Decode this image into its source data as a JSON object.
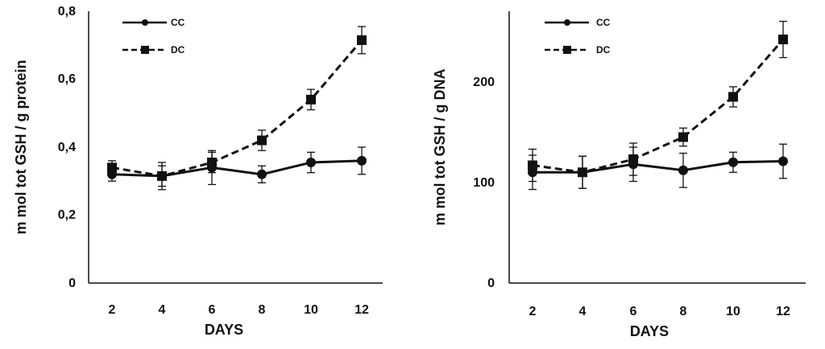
{
  "chart_data": [
    {
      "type": "line",
      "x": [
        2,
        4,
        6,
        8,
        10,
        12
      ],
      "xlabel": "DAYS",
      "ylabel": "m mol tot GSH / g protein",
      "ylim": [
        0,
        0.8
      ],
      "yticks": [
        "0",
        "0,2",
        "0,4",
        "0,6",
        "0,8"
      ],
      "grid": false,
      "legend": "top-left",
      "series": [
        {
          "name": "CC",
          "marker": "circle",
          "style": "solid",
          "y": [
            0.32,
            0.315,
            0.34,
            0.32,
            0.355,
            0.36
          ],
          "err": [
            0.02,
            0.03,
            0.05,
            0.025,
            0.03,
            0.04
          ]
        },
        {
          "name": "DC",
          "marker": "square",
          "style": "dashed",
          "y": [
            0.34,
            0.315,
            0.355,
            0.42,
            0.54,
            0.715
          ],
          "err": [
            0.02,
            0.04,
            0.03,
            0.03,
            0.03,
            0.04
          ]
        }
      ]
    },
    {
      "type": "line",
      "x": [
        2,
        4,
        6,
        8,
        10,
        12
      ],
      "xlabel": "DAYS",
      "ylabel": "m mol tot GSH / g DNA",
      "ylim": [
        0,
        270
      ],
      "yticks": [
        "0",
        "100",
        "200"
      ],
      "grid": false,
      "legend": "top-left",
      "series": [
        {
          "name": "CC",
          "marker": "circle",
          "style": "solid",
          "y": [
            110,
            110,
            118,
            112,
            120,
            121
          ],
          "err": [
            17,
            16,
            17,
            17,
            10,
            17
          ]
        },
        {
          "name": "DC",
          "marker": "square",
          "style": "dashed",
          "y": [
            117,
            110,
            123,
            145,
            185,
            242
          ],
          "err": [
            16,
            16,
            16,
            9,
            10,
            18
          ]
        }
      ]
    }
  ]
}
